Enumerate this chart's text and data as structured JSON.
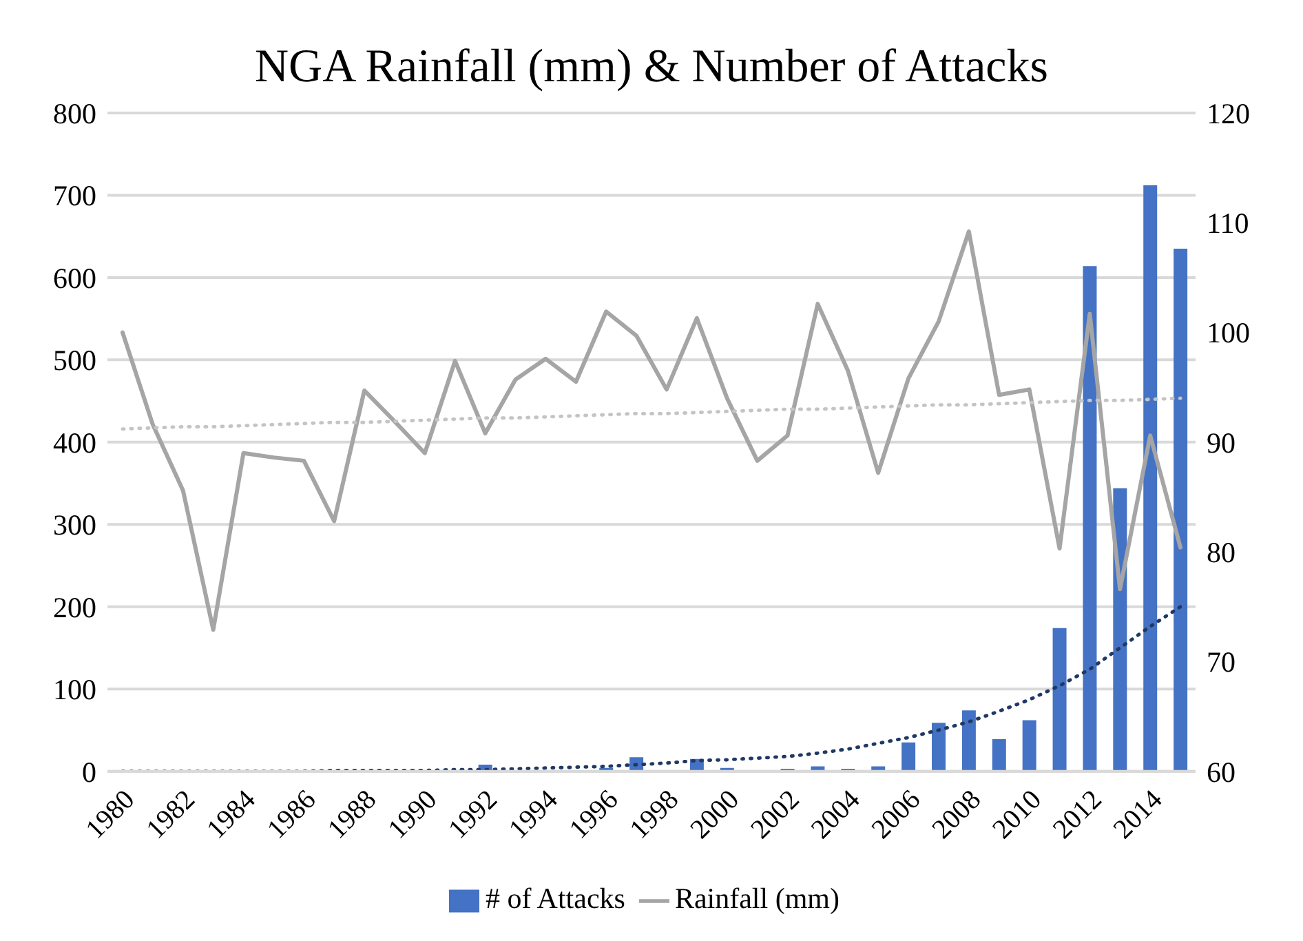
{
  "chart_data": {
    "type": "bar",
    "title": "NGA Rainfall (mm) & Number of Attacks",
    "categories": [
      "1980",
      null,
      "1982",
      null,
      "1984",
      null,
      "1986",
      null,
      "1988",
      null,
      "1990",
      null,
      "1992",
      null,
      "1994",
      null,
      "1996",
      null,
      "1998",
      null,
      "2000",
      null,
      "2002",
      null,
      "2004",
      null,
      "2006",
      null,
      "2008",
      null,
      "2010",
      null,
      "2012",
      null,
      "2014",
      null
    ],
    "series": [
      {
        "name": "# of Attacks",
        "color": "#4472c4",
        "values": [
          0,
          0,
          0,
          1,
          0,
          0,
          0,
          0,
          0,
          0,
          0,
          1,
          8,
          0,
          null,
          0,
          4,
          17,
          null,
          15,
          4,
          null,
          3,
          6,
          3,
          6,
          35,
          59,
          74,
          39,
          62,
          174,
          614,
          344,
          712,
          635
        ]
      },
      {
        "name": "Rainfall (mm)",
        "type": "line",
        "axis": "y2",
        "color": "#a5a5a5",
        "line_style": "solid",
        "values": [
          100.0,
          91.6,
          85.6,
          72.9,
          89.0,
          88.6,
          88.3,
          82.8,
          94.7,
          91.9,
          89.0,
          97.4,
          90.8,
          95.7,
          97.6,
          95.5,
          101.9,
          99.7,
          94.8,
          101.3,
          94.0,
          88.3,
          90.6,
          102.6,
          96.5,
          87.2,
          95.8,
          101.0,
          109.2,
          94.3,
          94.8,
          80.3,
          101.7,
          76.6,
          90.6,
          80.4
        ]
      },
      {
        "type": "line",
        "color": "#203864",
        "line_style": "dotted",
        "values": [
          0,
          0,
          0,
          0,
          0,
          0,
          0,
          1,
          1,
          1,
          1,
          2,
          2,
          3,
          4,
          5,
          6,
          8,
          10,
          13,
          14,
          16,
          18,
          22,
          27,
          34,
          41,
          50,
          60,
          73,
          87,
          104,
          124,
          150,
          176,
          200
        ]
      },
      {
        "type": "line",
        "axis": "y2",
        "color": "#c4c4c4",
        "line_style": "dotted",
        "values": [
          91.2,
          91.3,
          91.4,
          91.4,
          91.5,
          91.6,
          91.7,
          91.8,
          91.8,
          91.9,
          92.0,
          92.1,
          92.2,
          92.2,
          92.3,
          92.4,
          92.5,
          92.6,
          92.6,
          92.7,
          92.8,
          92.9,
          93.0,
          93.0,
          93.1,
          93.2,
          93.3,
          93.4,
          93.4,
          93.5,
          93.6,
          93.7,
          93.8,
          93.8,
          93.9,
          94.0
        ]
      }
    ],
    "ylim": [
      0,
      800
    ],
    "yticks": [
      0,
      100,
      200,
      300,
      400,
      500,
      600,
      700,
      800
    ],
    "y2lim": [
      60,
      120
    ],
    "y2ticks": [
      60,
      70,
      80,
      90,
      100,
      110,
      120
    ],
    "grid": "y",
    "legend": "bottom"
  }
}
